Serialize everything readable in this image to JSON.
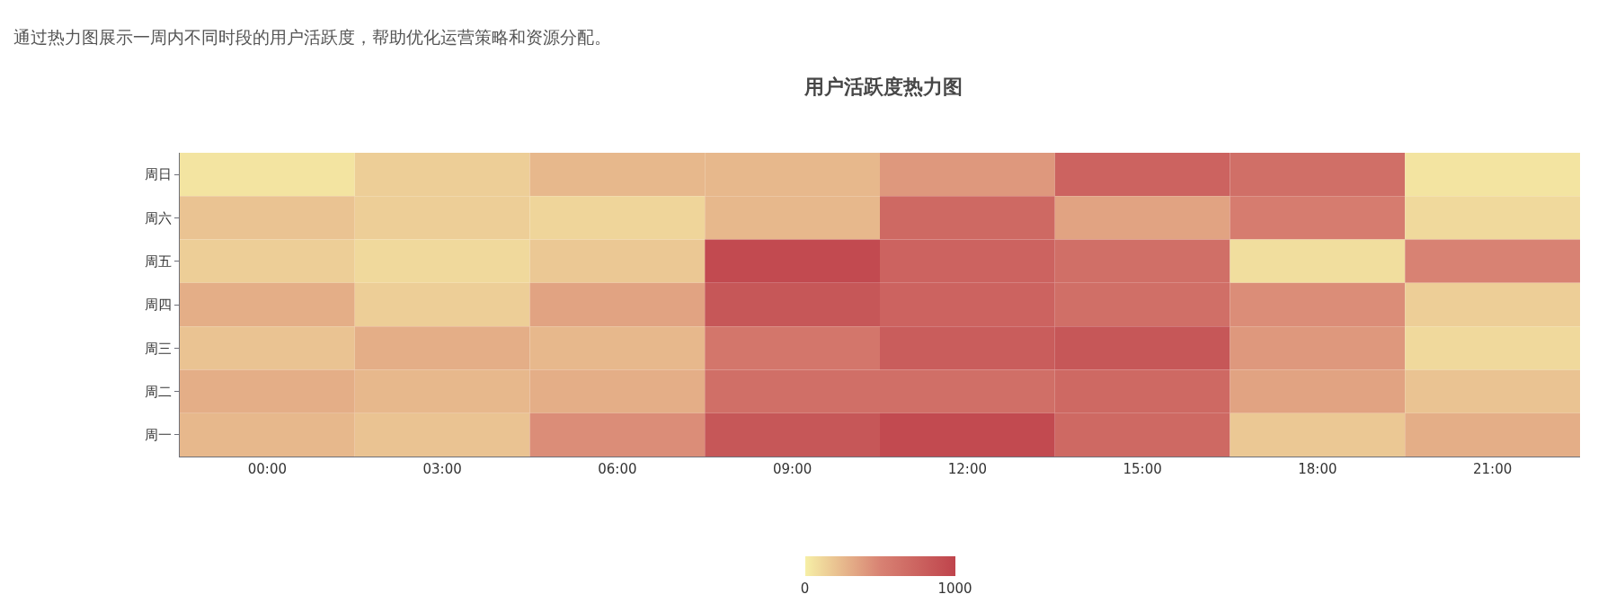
{
  "chart_data": {
    "type": "heatmap",
    "title": "用户活跃度热力图",
    "subtitle": "通过热力图展示一周内不同时段的用户活跃度，帮助优化运营策略和资源分配。",
    "categories": [
      "00:00",
      "03:00",
      "06:00",
      "09:00",
      "12:00",
      "15:00",
      "18:00",
      "21:00"
    ],
    "y_categories": [
      "周日",
      "周六",
      "周五",
      "周四",
      "周三",
      "周二",
      "周一"
    ],
    "cells": [
      [
        50,
        150,
        250,
        250,
        400,
        750,
        650,
        50
      ],
      [
        200,
        150,
        120,
        250,
        700,
        350,
        550,
        100
      ],
      [
        150,
        100,
        180,
        950,
        750,
        650,
        80,
        500
      ],
      [
        300,
        150,
        350,
        850,
        750,
        650,
        450,
        150
      ],
      [
        200,
        300,
        250,
        600,
        800,
        850,
        400,
        100
      ],
      [
        300,
        250,
        300,
        650,
        650,
        700,
        350,
        200
      ],
      [
        250,
        200,
        450,
        850,
        950,
        700,
        180,
        300
      ]
    ],
    "clim": [
      0,
      1000
    ],
    "cticks": [
      0,
      1000
    ]
  }
}
